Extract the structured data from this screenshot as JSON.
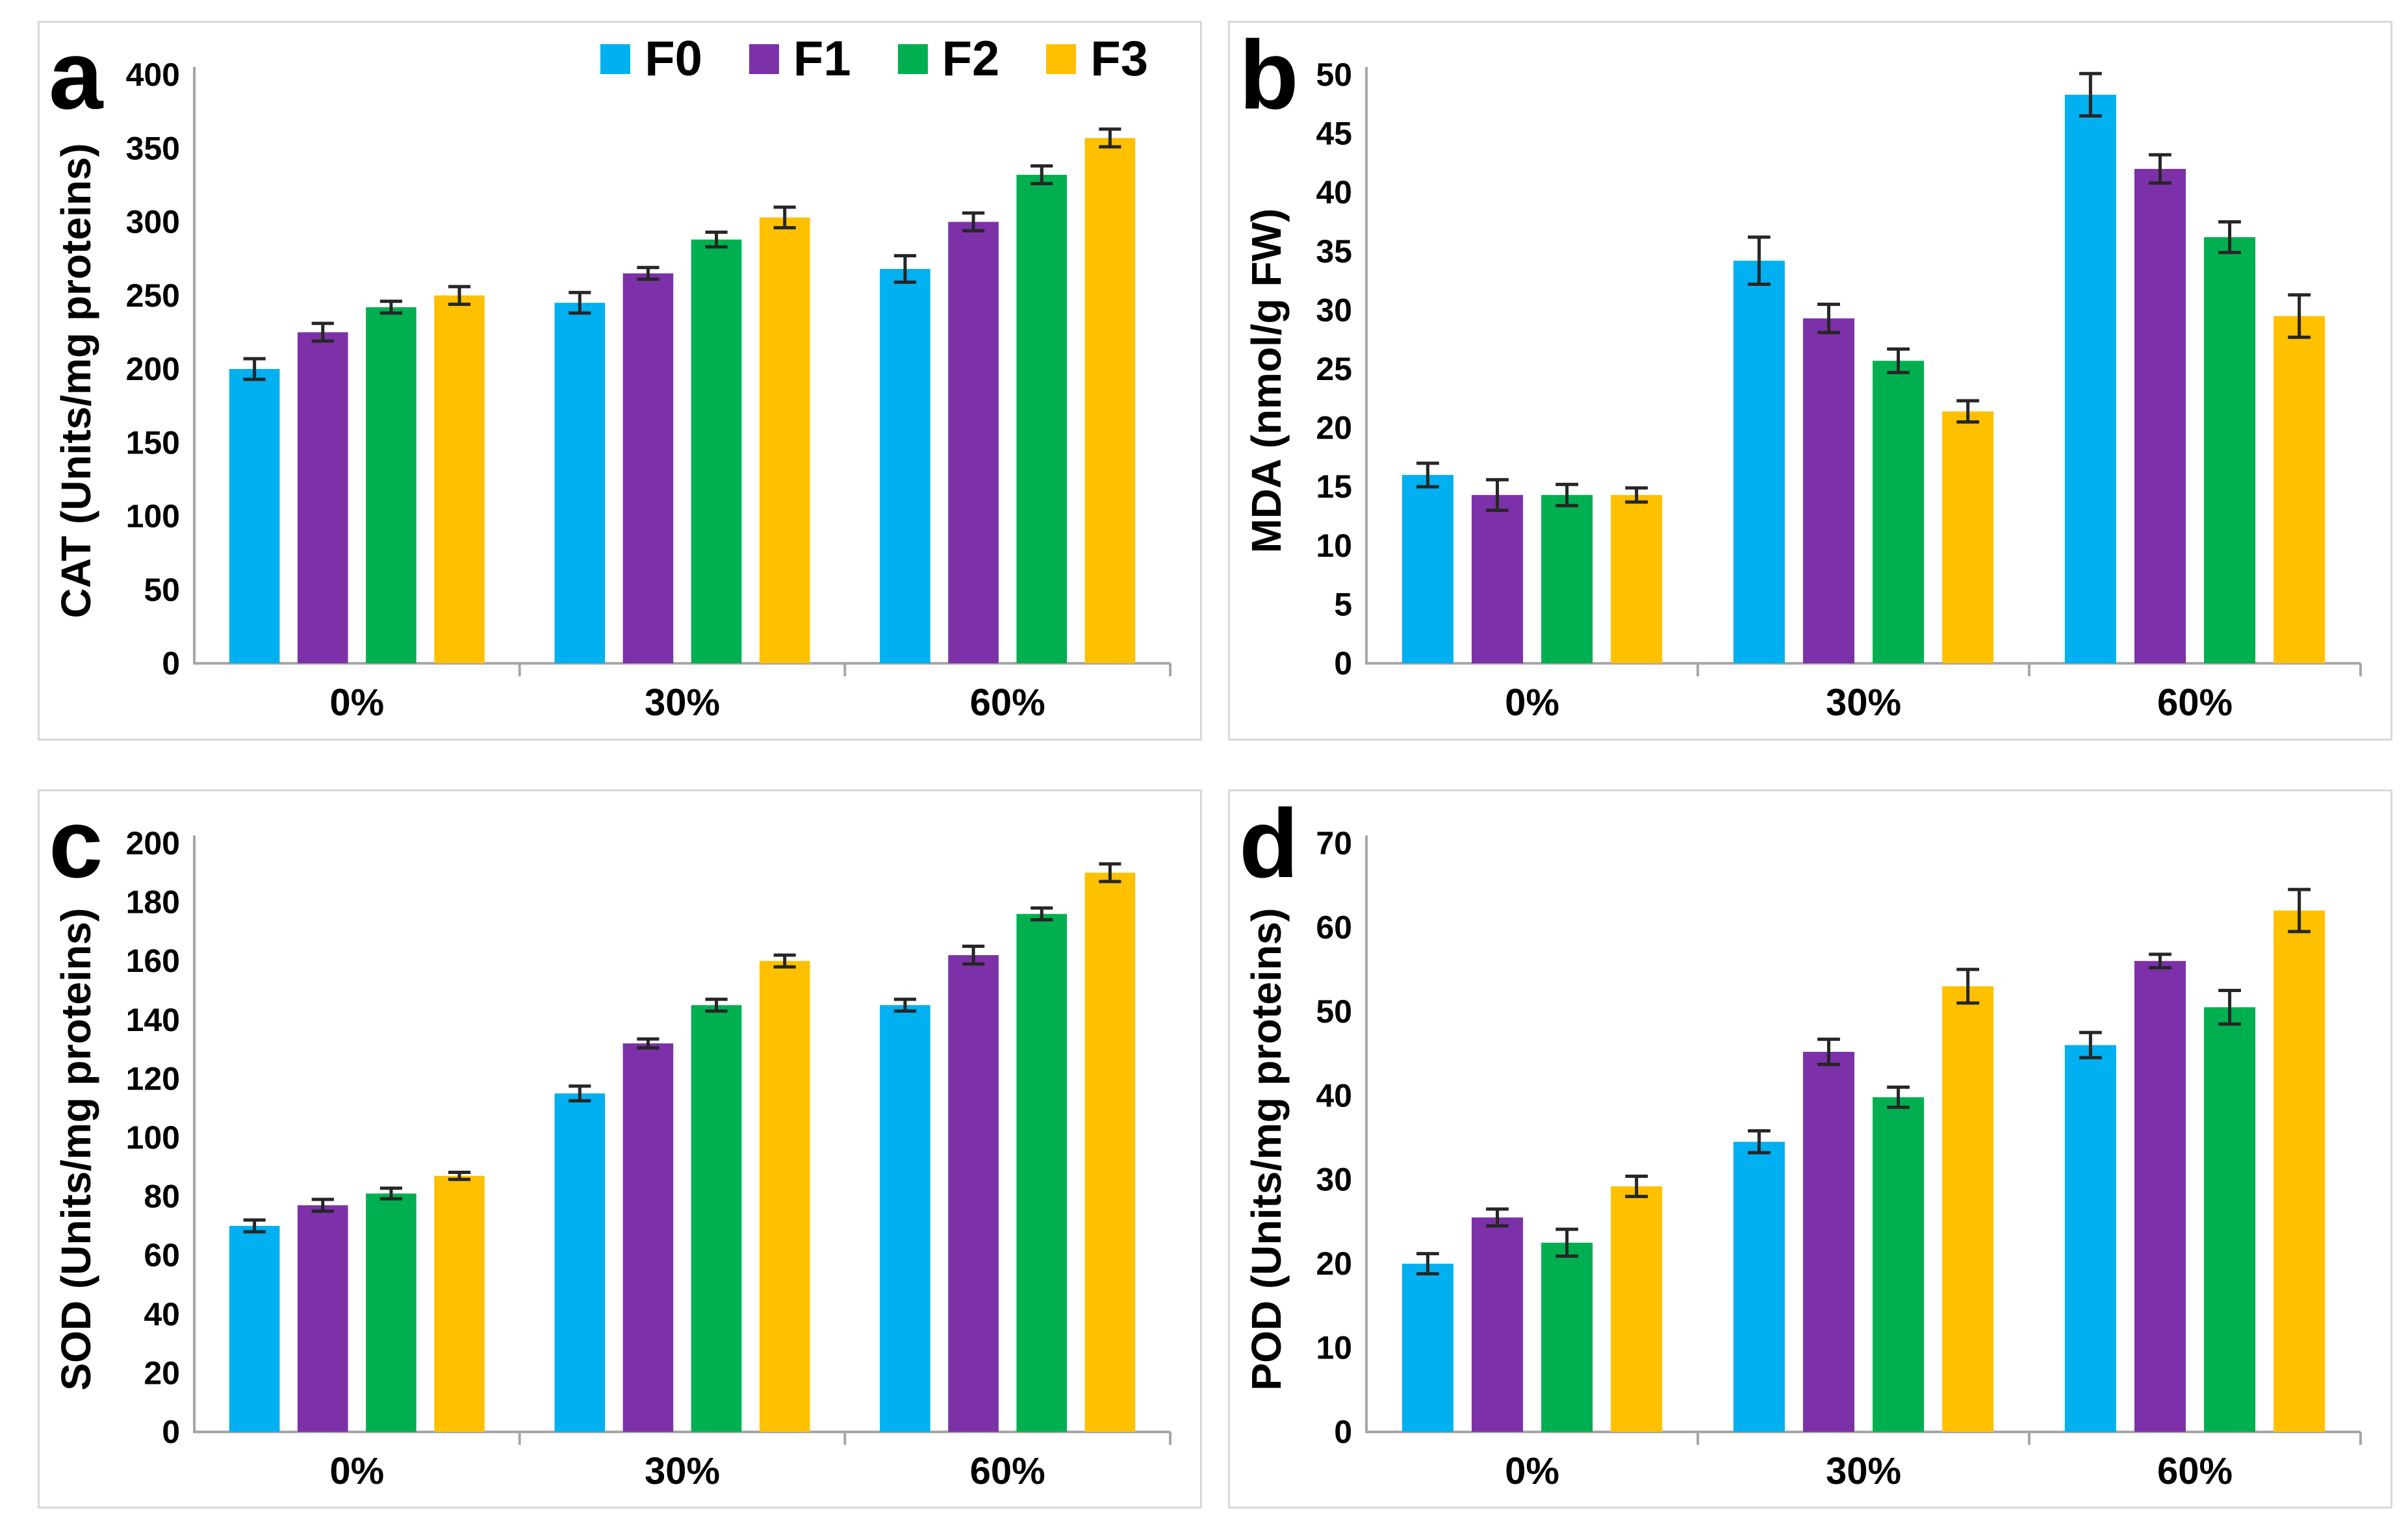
{
  "figure": {
    "background": "#FFFFFF",
    "panel_border_color": "#D9D9D9",
    "axis_color": "#A6A6A6",
    "error_bar_color": "#262626",
    "text_color": "#000000"
  },
  "legend": {
    "position": "top-right-of-panel-a",
    "items": [
      {
        "label": "F0",
        "color": "#00B0F0"
      },
      {
        "label": "F1",
        "color": "#7C31A8"
      },
      {
        "label": "F2",
        "color": "#00B050"
      },
      {
        "label": "F3",
        "color": "#FFC000"
      }
    ]
  },
  "chart_data": [
    {
      "panel_label": "a",
      "type": "bar",
      "title": "",
      "xlabel": "",
      "ylabel": "CAT (Units/mg proteins)",
      "ylim": [
        0,
        400
      ],
      "ytick_step": 50,
      "grid": false,
      "categories": [
        "0%",
        "30%",
        "60%"
      ],
      "series": [
        {
          "name": "F0",
          "color": "#00B0F0",
          "values": [
            200,
            245,
            268
          ],
          "errors": [
            7,
            7,
            9
          ]
        },
        {
          "name": "F1",
          "color": "#7C31A8",
          "values": [
            225,
            265,
            300
          ],
          "errors": [
            6,
            4,
            6
          ]
        },
        {
          "name": "F2",
          "color": "#00B050",
          "values": [
            242,
            288,
            332
          ],
          "errors": [
            4,
            5,
            6
          ]
        },
        {
          "name": "F3",
          "color": "#FFC000",
          "values": [
            250,
            303,
            357
          ],
          "errors": [
            6,
            7,
            6
          ]
        }
      ]
    },
    {
      "panel_label": "b",
      "type": "bar",
      "title": "",
      "xlabel": "",
      "ylabel": "MDA (nmol/g FW)",
      "ylim": [
        0,
        50
      ],
      "ytick_step": 5,
      "grid": false,
      "categories": [
        "0%",
        "30%",
        "60%"
      ],
      "series": [
        {
          "name": "F0",
          "color": "#00B0F0",
          "values": [
            16,
            34.2,
            48.3
          ],
          "errors": [
            1,
            2,
            1.8
          ]
        },
        {
          "name": "F1",
          "color": "#7C31A8",
          "values": [
            14.3,
            29.3,
            42
          ],
          "errors": [
            1.3,
            1.2,
            1.2
          ]
        },
        {
          "name": "F2",
          "color": "#00B050",
          "values": [
            14.3,
            25.7,
            36.2
          ],
          "errors": [
            0.9,
            1,
            1.3
          ]
        },
        {
          "name": "F3",
          "color": "#FFC000",
          "values": [
            14.3,
            21.4,
            29.5
          ],
          "errors": [
            0.6,
            0.9,
            1.8
          ]
        }
      ]
    },
    {
      "panel_label": "c",
      "type": "bar",
      "title": "",
      "xlabel": "",
      "ylabel": "SOD (Units/mg proteins)",
      "ylim": [
        0,
        200
      ],
      "ytick_step": 20,
      "grid": false,
      "categories": [
        "0%",
        "30%",
        "60%"
      ],
      "series": [
        {
          "name": "F0",
          "color": "#00B0F0",
          "values": [
            70,
            115,
            145
          ],
          "errors": [
            2,
            2.5,
            2
          ]
        },
        {
          "name": "F1",
          "color": "#7C31A8",
          "values": [
            77,
            132,
            162
          ],
          "errors": [
            2,
            1.5,
            3
          ]
        },
        {
          "name": "F2",
          "color": "#00B050",
          "values": [
            81,
            145,
            176
          ],
          "errors": [
            1.8,
            2,
            2
          ]
        },
        {
          "name": "F3",
          "color": "#FFC000",
          "values": [
            87,
            160,
            190
          ],
          "errors": [
            1.2,
            2,
            3
          ]
        }
      ]
    },
    {
      "panel_label": "d",
      "type": "bar",
      "title": "",
      "xlabel": "",
      "ylabel": "POD (Units/mg proteins)",
      "ylim": [
        0,
        70
      ],
      "ytick_step": 10,
      "grid": false,
      "categories": [
        "0%",
        "30%",
        "60%"
      ],
      "series": [
        {
          "name": "F0",
          "color": "#00B0F0",
          "values": [
            20,
            34.5,
            46
          ],
          "errors": [
            1.2,
            1.3,
            1.5
          ]
        },
        {
          "name": "F1",
          "color": "#7C31A8",
          "values": [
            25.5,
            45.2,
            56
          ],
          "errors": [
            1,
            1.5,
            0.8
          ]
        },
        {
          "name": "F2",
          "color": "#00B050",
          "values": [
            22.5,
            39.8,
            50.5
          ],
          "errors": [
            1.6,
            1.2,
            2
          ]
        },
        {
          "name": "F3",
          "color": "#FFC000",
          "values": [
            29.2,
            53,
            62
          ],
          "errors": [
            1.2,
            2,
            2.5
          ]
        }
      ]
    }
  ]
}
